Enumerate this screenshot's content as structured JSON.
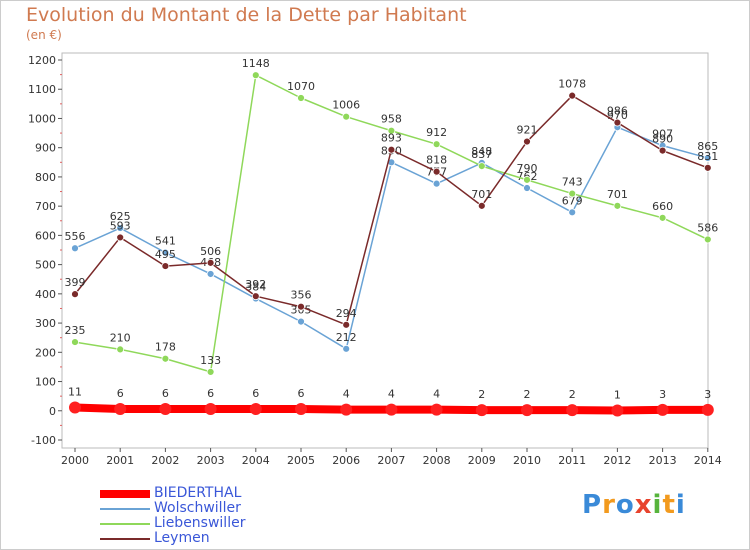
{
  "chart_data": {
    "type": "line",
    "title": "Evolution du Montant de la Dette par Habitant",
    "subtitle": "(en €)",
    "x": [
      "2000",
      "2001",
      "2002",
      "2003",
      "2004",
      "2005",
      "2006",
      "2007",
      "2008",
      "2009",
      "2010",
      "2011",
      "2012",
      "2013",
      "2014"
    ],
    "y_ticks": [
      "-100",
      "0",
      "100",
      "200",
      "300",
      "400",
      "500",
      "600",
      "700",
      "800",
      "900",
      "1000",
      "1100",
      "1200"
    ],
    "ylim": [
      -100,
      1200
    ],
    "grid": false,
    "legend": "bottom-left",
    "series": [
      {
        "name": "BIEDERTHAL",
        "color": "#ff0000",
        "values": [
          11,
          6,
          6,
          6,
          6,
          6,
          4,
          4,
          4,
          2,
          2,
          2,
          1,
          3,
          3
        ],
        "labels": [
          "11",
          "6",
          "6",
          "6",
          "6",
          "6",
          "4",
          "4",
          "4",
          "2",
          "2",
          "2",
          "1",
          "3",
          "3"
        ]
      },
      {
        "name": "Wolschwiller",
        "color": "#6aa3d5",
        "values": [
          556,
          625,
          541,
          468,
          384,
          305,
          212,
          850,
          777,
          848,
          762,
          679,
          970,
          907,
          865
        ],
        "labels": [
          "556",
          "625",
          "541",
          "468",
          "384",
          "305",
          "212",
          "850",
          "777",
          "848",
          "762",
          "679",
          "970",
          "907",
          "865"
        ]
      },
      {
        "name": "Liebenswiller",
        "color": "#8fd85a",
        "values": [
          235,
          210,
          178,
          133,
          1148,
          1070,
          1006,
          958,
          912,
          837,
          790,
          743,
          701,
          660,
          586
        ],
        "labels": [
          "235",
          "210",
          "178",
          "133",
          "1148",
          "1070",
          "1006",
          "958",
          "912",
          "837",
          "790",
          "743",
          "701",
          "660",
          "586"
        ]
      },
      {
        "name": "Leymen",
        "color": "#7a2a2a",
        "values": [
          399,
          593,
          495,
          506,
          392,
          356,
          294,
          893,
          818,
          701,
          921,
          1078,
          986,
          890,
          831
        ],
        "labels": [
          "399",
          "593",
          "495",
          "506",
          "392",
          "356",
          "294",
          "893",
          "818",
          "701",
          "921",
          "1078",
          "986",
          "890",
          "831"
        ]
      }
    ]
  },
  "logo": {
    "letters": [
      "P",
      "r",
      "o",
      "x",
      "i",
      "t",
      "i"
    ],
    "colors": [
      "#3a8ad8",
      "#f29a1e",
      "#3a8ad8",
      "#e8432d",
      "#57b43c",
      "#f29a1e",
      "#3a8ad8"
    ]
  }
}
